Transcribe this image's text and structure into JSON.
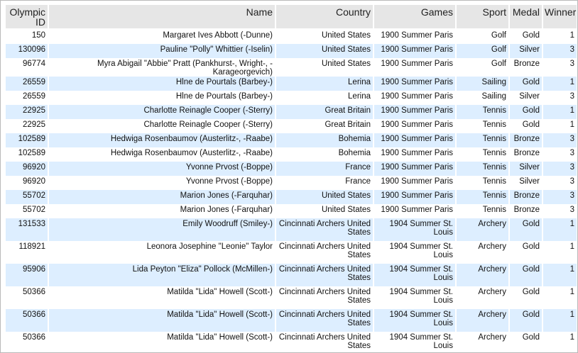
{
  "table": {
    "headers": [
      "Olympic ID",
      "Name",
      "Country",
      "Games",
      "Sport",
      "Medal",
      "Winner"
    ],
    "rows": [
      [
        "150",
        "Margaret Ives Abbott (-Dunne)",
        "United States",
        "1900 Summer Paris",
        "Golf",
        "Gold",
        "1"
      ],
      [
        "130096",
        "Pauline \"Polly\" Whittier (-Iselin)",
        "United States",
        "1900 Summer Paris",
        "Golf",
        "Silver",
        "3"
      ],
      [
        "96774",
        "Myra Abigail \"Abbie\" Pratt (Pankhurst-, Wright-, -Karageorgevich)",
        "United States",
        "1900 Summer Paris",
        "Golf",
        "Bronze",
        "3"
      ],
      [
        "26559",
        "Hlne de Pourtals (Barbey-)",
        "Lerina",
        "1900 Summer Paris",
        "Sailing",
        "Gold",
        "1"
      ],
      [
        "26559",
        "Hlne de Pourtals (Barbey-)",
        "Lerina",
        "1900 Summer Paris",
        "Sailing",
        "Silver",
        "3"
      ],
      [
        "22925",
        "Charlotte Reinagle Cooper (-Sterry)",
        "Great Britain",
        "1900 Summer Paris",
        "Tennis",
        "Gold",
        "1"
      ],
      [
        "22925",
        "Charlotte Reinagle Cooper (-Sterry)",
        "Great Britain",
        "1900 Summer Paris",
        "Tennis",
        "Gold",
        "1"
      ],
      [
        "102589",
        "Hedwiga Rosenbaumov (Austerlitz-, -Raabe)",
        "Bohemia",
        "1900 Summer Paris",
        "Tennis",
        "Bronze",
        "3"
      ],
      [
        "102589",
        "Hedwiga Rosenbaumov (Austerlitz-, -Raabe)",
        "Bohemia",
        "1900 Summer Paris",
        "Tennis",
        "Bronze",
        "3"
      ],
      [
        "96920",
        "Yvonne Prvost (-Boppe)",
        "France",
        "1900 Summer Paris",
        "Tennis",
        "Silver",
        "3"
      ],
      [
        "96920",
        "Yvonne Prvost (-Boppe)",
        "France",
        "1900 Summer Paris",
        "Tennis",
        "Silver",
        "3"
      ],
      [
        "55702",
        "Marion Jones (-Farquhar)",
        "United States",
        "1900 Summer Paris",
        "Tennis",
        "Bronze",
        "3"
      ],
      [
        "55702",
        "Marion Jones (-Farquhar)",
        "United States",
        "1900 Summer Paris",
        "Tennis",
        "Bronze",
        "3"
      ],
      [
        "131533",
        "Emily Woodruff (Smiley-)",
        "Cincinnati Archers United States",
        "1904 Summer St. Louis",
        "Archery",
        "Gold",
        "1"
      ],
      [
        "118921",
        "Leonora Josephine \"Leonie\" Taylor",
        "Cincinnati Archers United States",
        "1904 Summer St. Louis",
        "Archery",
        "Gold",
        "1"
      ],
      [
        "95906",
        "Lida Peyton \"Eliza\" Pollock (McMillen-)",
        "Cincinnati Archers United States",
        "1904 Summer St. Louis",
        "Archery",
        "Gold",
        "1"
      ],
      [
        "50366",
        "Matilda \"Lida\" Howell (Scott-)",
        "Cincinnati Archers United States",
        "1904 Summer St. Louis",
        "Archery",
        "Gold",
        "1"
      ],
      [
        "50366",
        "Matilda \"Lida\" Howell (Scott-)",
        "Cincinnati Archers United States",
        "1904 Summer St. Louis",
        "Archery",
        "Gold",
        "1"
      ],
      [
        "50366",
        "Matilda \"Lida\" Howell (Scott-)",
        "Cincinnati Archers United States",
        "1904 Summer St. Louis",
        "Archery",
        "Gold",
        "1"
      ]
    ]
  }
}
